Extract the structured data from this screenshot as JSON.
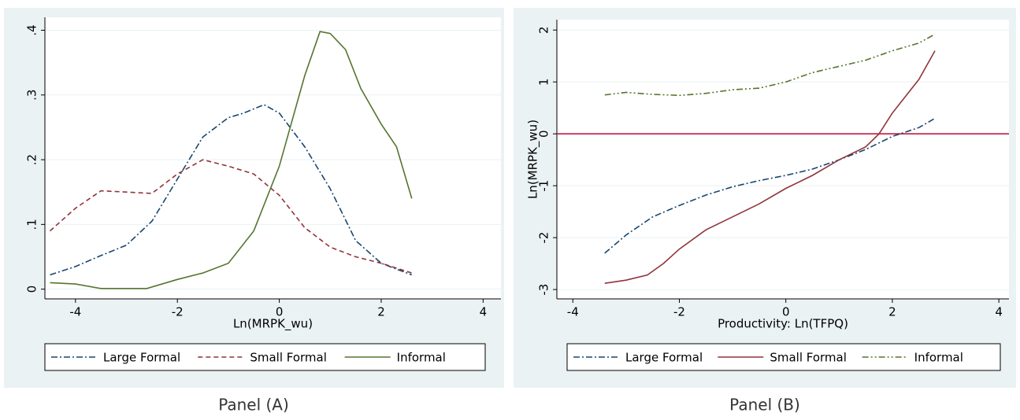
{
  "chart_data": [
    {
      "type": "line",
      "title": "Panel (A)",
      "x_label": "Ln(MRPK_wu)",
      "xlim": [
        -4.6,
        4.35
      ],
      "xticks": [
        -4,
        -2,
        0,
        2,
        4
      ],
      "ylim": [
        -0.015,
        0.42
      ],
      "yticks": [
        0,
        {
          "value": 0.1,
          "label": ".1"
        },
        {
          "value": 0.2,
          "label": ".2"
        },
        {
          "value": 0.3,
          "label": ".3"
        },
        {
          "value": 0.4,
          "label": ".4"
        }
      ],
      "grid": true,
      "series": [
        {
          "name": "Large Formal",
          "color": "#1a476f",
          "style": "dashdot",
          "x": [
            -4.5,
            -4,
            -3.5,
            -3,
            -2.5,
            -2,
            -1.5,
            -1,
            -0.7,
            -0.3,
            0,
            0.5,
            1,
            1.5,
            2,
            2.6
          ],
          "values": [
            0.022,
            0.035,
            0.052,
            0.068,
            0.105,
            0.17,
            0.235,
            0.265,
            0.272,
            0.285,
            0.272,
            0.22,
            0.155,
            0.075,
            0.04,
            0.022
          ]
        },
        {
          "name": "Small Formal",
          "color": "#90353b",
          "style": "dash",
          "x": [
            -4.5,
            -4,
            -3.5,
            -3,
            -2.5,
            -2,
            -1.5,
            -1,
            -0.5,
            0,
            0.5,
            1,
            1.5,
            2,
            2.6
          ],
          "values": [
            0.09,
            0.125,
            0.152,
            0.15,
            0.148,
            0.178,
            0.2,
            0.19,
            0.178,
            0.145,
            0.095,
            0.065,
            0.05,
            0.04,
            0.025
          ]
        },
        {
          "name": "Informal",
          "color": "#55752f",
          "style": "solid",
          "x": [
            -4.5,
            -4,
            -3.5,
            -3,
            -2.6,
            -2,
            -1.5,
            -1,
            -0.5,
            0,
            0.5,
            0.8,
            1,
            1.3,
            1.6,
            2,
            2.3,
            2.6
          ],
          "values": [
            0.01,
            0.008,
            0.001,
            0.001,
            0.001,
            0.015,
            0.025,
            0.04,
            0.09,
            0.19,
            0.33,
            0.398,
            0.395,
            0.37,
            0.31,
            0.255,
            0.22,
            0.14
          ]
        }
      ]
    },
    {
      "type": "line",
      "title": "Panel (B)",
      "x_label": "Productivity: Ln(TFPQ)",
      "y_label": "Ln(MRPK_wu)",
      "xlim": [
        -4.3,
        4.19
      ],
      "xticks": [
        -4,
        -2,
        0,
        2,
        4
      ],
      "ylim": [
        -3.18,
        2.2
      ],
      "yticks": [
        -3,
        -2,
        -1,
        0,
        1,
        2
      ],
      "grid": true,
      "reference_line": 0,
      "reference_color": "#c10534",
      "series": [
        {
          "name": "Large Formal",
          "color": "#1a476f",
          "style": "dashdot",
          "x": [
            -3.4,
            -3,
            -2.5,
            -2,
            -1.5,
            -1,
            -0.5,
            0,
            0.5,
            1,
            1.5,
            2,
            2.5,
            2.8
          ],
          "values": [
            -2.3,
            -1.95,
            -1.6,
            -1.38,
            -1.18,
            -1.02,
            -0.9,
            -0.8,
            -0.68,
            -0.5,
            -0.3,
            -0.05,
            0.12,
            0.3
          ]
        },
        {
          "name": "Small Formal",
          "color": "#90353b",
          "style": "solid",
          "x": [
            -3.4,
            -3,
            -2.6,
            -2.3,
            -2,
            -1.5,
            -1,
            -0.5,
            0,
            0.5,
            1,
            1.5,
            1.75,
            2,
            2.5,
            2.8
          ],
          "values": [
            -2.88,
            -2.82,
            -2.72,
            -2.5,
            -2.22,
            -1.85,
            -1.6,
            -1.35,
            -1.05,
            -0.8,
            -0.5,
            -0.25,
            0,
            0.4,
            1.05,
            1.6
          ]
        },
        {
          "name": "Informal",
          "color": "#55752f",
          "style": "dashdotdot",
          "x": [
            -3.4,
            -3,
            -2.5,
            -2,
            -1.5,
            -1,
            -0.5,
            0,
            0.5,
            1,
            1.5,
            2,
            2.5,
            2.8
          ],
          "values": [
            0.75,
            0.8,
            0.76,
            0.74,
            0.78,
            0.85,
            0.88,
            1.0,
            1.18,
            1.3,
            1.42,
            1.6,
            1.75,
            1.92
          ]
        }
      ]
    }
  ]
}
